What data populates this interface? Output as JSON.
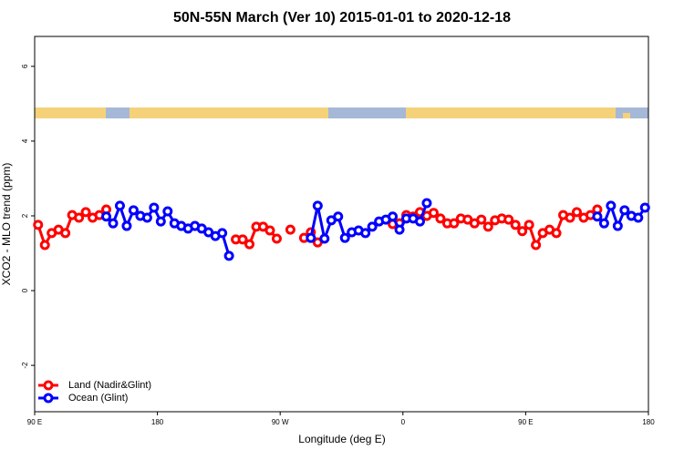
{
  "chart_data": {
    "type": "line",
    "title": "50N-55N March (Ver 10)   2015-01-01 to 2020-12-18",
    "x_label": "Longitude (deg E)",
    "y_label": "XCO2 - MLO trend (ppm)",
    "x": [
      92.5,
      97.5,
      102.5,
      107.5,
      112.5,
      117.5,
      122.5,
      127.5,
      132.5,
      137.5,
      142.5,
      147.5,
      152.5,
      157.5,
      162.5,
      167.5,
      172.5,
      177.5,
      182.5,
      187.5,
      192.5,
      197.5,
      202.5,
      207.5,
      212.5,
      217.5,
      222.5,
      227.5,
      232.5,
      237.5,
      242.5,
      247.5,
      252.5,
      257.5,
      262.5,
      267.5,
      272.5,
      277.5,
      282.5,
      287.5,
      292.5,
      297.5,
      302.5,
      307.5,
      312.5,
      317.5,
      322.5,
      327.5,
      332.5,
      337.5,
      342.5,
      347.5,
      352.5,
      357.5,
      362.5,
      367.5,
      372.5,
      377.5,
      382.5,
      387.5,
      392.5,
      397.5,
      402.5,
      407.5,
      412.5,
      417.5,
      422.5,
      427.5,
      432.5,
      437.5,
      442.5,
      447.5,
      452.5,
      457.5,
      462.5,
      467.5,
      472.5,
      477.5,
      482.5,
      487.5,
      492.5,
      497.5,
      502.5,
      507.5,
      512.5,
      517.5,
      522.5,
      527.5,
      532.5,
      537.5
    ],
    "series": [
      {
        "name": "Land (Nadir&Glint)",
        "color": "#ff0000",
        "values": [
          1.76,
          1.22,
          1.54,
          1.63,
          1.54,
          2.02,
          1.95,
          2.1,
          1.95,
          2.02,
          2.17,
          null,
          null,
          null,
          null,
          null,
          null,
          null,
          null,
          null,
          null,
          null,
          null,
          null,
          null,
          null,
          null,
          null,
          null,
          1.37,
          1.37,
          1.24,
          1.71,
          1.71,
          1.61,
          1.39,
          null,
          1.63,
          null,
          1.41,
          1.56,
          1.29,
          null,
          null,
          null,
          null,
          null,
          null,
          null,
          null,
          null,
          null,
          1.78,
          1.8,
          2.02,
          1.98,
          2.1,
          2.0,
          2.08,
          1.93,
          1.8,
          1.8,
          1.93,
          1.9,
          1.8,
          1.9,
          1.71,
          1.88,
          1.93,
          1.9,
          1.76,
          1.59,
          1.76,
          1.22,
          1.54,
          1.63,
          1.54,
          2.02,
          1.95,
          2.1,
          1.95,
          2.02,
          2.17,
          null,
          null,
          null,
          null,
          null,
          null,
          null
        ]
      },
      {
        "name": "Ocean (Glint)",
        "color": "#0000ff",
        "values": [
          null,
          null,
          null,
          null,
          null,
          null,
          null,
          null,
          null,
          null,
          1.98,
          1.8,
          2.27,
          1.73,
          2.15,
          2.0,
          1.95,
          2.22,
          1.85,
          2.12,
          1.8,
          1.73,
          1.66,
          1.73,
          1.66,
          1.56,
          1.46,
          1.54,
          0.93,
          null,
          null,
          null,
          null,
          null,
          null,
          null,
          null,
          null,
          null,
          null,
          1.41,
          2.27,
          1.39,
          1.88,
          1.98,
          1.41,
          1.56,
          1.61,
          1.54,
          1.71,
          1.85,
          1.9,
          1.98,
          1.63,
          1.93,
          1.93,
          1.85,
          2.34,
          null,
          null,
          null,
          null,
          null,
          null,
          null,
          null,
          null,
          null,
          null,
          null,
          null,
          null,
          null,
          null,
          null,
          null,
          null,
          null,
          null,
          null,
          null,
          null,
          1.98,
          1.8,
          2.27,
          1.73,
          2.15,
          2.0,
          1.95,
          2.22
        ]
      }
    ],
    "xlim": [
      90,
      540
    ],
    "xticks": [
      {
        "value": 90,
        "label": "90 E"
      },
      180,
      {
        "value": 270,
        "label": "90 W"
      },
      {
        "value": 360,
        "label": "0"
      },
      {
        "value": 450,
        "label": "90 E"
      },
      {
        "value": 540,
        "label": "180"
      }
    ],
    "ylim": [
      -3.24,
      6.8
    ],
    "yticks": [
      -2,
      0,
      2,
      4,
      6
    ],
    "legend": "bottom-left"
  }
}
